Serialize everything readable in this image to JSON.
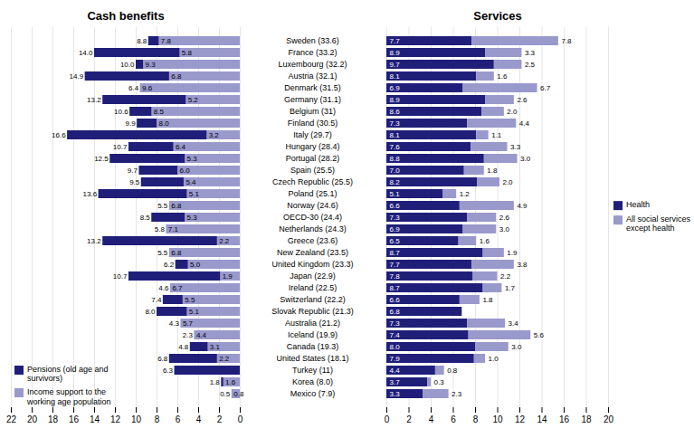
{
  "chart_data": [
    {
      "type": "bar",
      "title": "Cash benefits",
      "orientation": "horizontal",
      "stacked": false,
      "data_labels": true,
      "grid": true,
      "legend": "lower left",
      "categories": [
        "Sweden (33.6)",
        "France (33.2)",
        "Luxembourg (32.2)",
        "Austria (32.1)",
        "Denmark (31.5)",
        "Germany (31.1)",
        "Belgium (31)",
        "Finland (30.5)",
        "Italy (29.7)",
        "Hungary (28.4)",
        "Portugal (28.2)",
        "Spain (25.5)",
        "Czech Republic (25.5)",
        "Poland (25.1)",
        "Norway (24.6)",
        "OECD-30 (24.4)",
        "Netherlands (24.3)",
        "Greece (23.6)",
        "New Zealand (23.5)",
        "United Kingdom (23.3)",
        "Japan (22.9)",
        "Ireland (22.5)",
        "Switzerland (22.2)",
        "Slovak Republic (21.3)",
        "Australia (21.2)",
        "Iceland (19.9)",
        "Canada (19.3)",
        "United States (18.1)",
        "Turkey (11)",
        "Korea (8.0)",
        "Mexico (7.9)"
      ],
      "series": [
        {
          "name": "Pensions (old age and\nsurvivors)",
          "color": "#1f1f7a",
          "values": [
            8.8,
            14.0,
            10.0,
            14.9,
            6.4,
            13.2,
            10.6,
            9.9,
            16.6,
            10.7,
            12.5,
            9.7,
            9.5,
            13.6,
            5.5,
            8.5,
            5.8,
            13.2,
            5.5,
            6.2,
            10.7,
            4.6,
            7.4,
            8.0,
            4.3,
            2.3,
            4.8,
            6.8,
            6.3,
            1.8,
            0.5
          ],
          "value_labels": [
            "8.8",
            "14.0",
            "10.0",
            "14.9",
            "6.4",
            "13.2",
            "10.6",
            "9.9",
            "16.6",
            "10.7",
            "12.5",
            "9.7",
            "9.5",
            "13.6",
            "5.5",
            "8.5",
            "5.8",
            "13.2",
            "5.5",
            "6.2",
            "10.7",
            "4.6",
            "7.4",
            "8.0",
            "4.3",
            "2.3",
            "4.8",
            "6.8",
            "6.3",
            "1.8",
            "0.5"
          ]
        },
        {
          "name": "Income support to the\nworking age population",
          "color": "#9999cc",
          "values": [
            7.8,
            5.8,
            9.3,
            6.8,
            9.6,
            5.2,
            8.5,
            8.0,
            3.2,
            6.4,
            5.3,
            6.0,
            5.4,
            5.1,
            6.8,
            5.3,
            7.1,
            2.2,
            6.8,
            5.0,
            1.9,
            6.7,
            5.5,
            5.1,
            5.7,
            4.4,
            3.1,
            2.2,
            0.0,
            1.6,
            0.8
          ],
          "value_labels": [
            "7.8",
            "5.8",
            "9.3",
            "6.8",
            "9.6",
            "5.2",
            "8.5",
            "8.0",
            "3.2",
            "6.4",
            "5.3",
            "6.0",
            "5.4",
            "5.1",
            "6.8",
            "5.3",
            "7.1",
            "2.2",
            "6.8",
            "5.0",
            "1.9",
            "6.7",
            "5.5",
            "5.1",
            "5.7",
            "4.4",
            "3.1",
            "2.2",
            null,
            "1.6",
            "0.8"
          ]
        }
      ],
      "xlim": [
        22,
        0
      ],
      "xticks": [
        0,
        2,
        4,
        6,
        8,
        10,
        12,
        14,
        16,
        18,
        20,
        22
      ]
    },
    {
      "type": "bar",
      "title": "Services",
      "orientation": "horizontal",
      "stacked": true,
      "data_labels": true,
      "grid": true,
      "legend": "center right",
      "categories": [
        "Sweden (33.6)",
        "France (33.2)",
        "Luxembourg (32.2)",
        "Austria (32.1)",
        "Denmark (31.5)",
        "Germany (31.1)",
        "Belgium (31)",
        "Finland (30.5)",
        "Italy (29.7)",
        "Hungary (28.4)",
        "Portugal (28.2)",
        "Spain (25.5)",
        "Czech Republic (25.5)",
        "Poland (25.1)",
        "Norway (24.6)",
        "OECD-30 (24.4)",
        "Netherlands (24.3)",
        "Greece (23.6)",
        "New Zealand (23.5)",
        "United Kingdom (23.3)",
        "Japan (22.9)",
        "Ireland (22.5)",
        "Switzerland (22.2)",
        "Slovak Republic (21.3)",
        "Australia (21.2)",
        "Iceland (19.9)",
        "Canada (19.3)",
        "United States (18.1)",
        "Turkey (11)",
        "Korea (8.0)",
        "Mexico (7.9)"
      ],
      "series": [
        {
          "name": "Health",
          "color": "#1f1f7a",
          "values": [
            7.7,
            8.9,
            9.7,
            8.1,
            6.9,
            8.9,
            8.6,
            7.3,
            8.1,
            7.6,
            8.8,
            7.0,
            8.2,
            5.1,
            6.6,
            7.3,
            6.9,
            6.5,
            8.7,
            7.7,
            7.8,
            8.7,
            6.6,
            6.8,
            7.3,
            7.4,
            8.0,
            7.9,
            4.4,
            3.7,
            3.3
          ],
          "value_labels": [
            "7.7",
            "8.9",
            "9.7",
            "8.1",
            "6.9",
            "8.9",
            "8.6",
            "7.3",
            "8.1",
            "7.6",
            "8.8",
            "7.0",
            "8.2",
            "5.1",
            "6.6",
            "7.3",
            "6.9",
            "6.5",
            "8.7",
            "7.7",
            "7.8",
            "8.7",
            "6.6",
            "6.8",
            "7.3",
            "7.4",
            "8.0",
            "7.9",
            "4.4",
            "3.7",
            "3.3"
          ]
        },
        {
          "name": "All social services\nexcept health",
          "color": "#9999cc",
          "values": [
            7.8,
            3.3,
            2.5,
            1.6,
            6.7,
            2.6,
            2.0,
            4.4,
            1.1,
            3.3,
            3.0,
            1.8,
            2.0,
            1.2,
            4.9,
            2.6,
            3.0,
            1.6,
            1.9,
            3.8,
            2.2,
            1.7,
            1.8,
            0.0,
            3.4,
            5.6,
            3.0,
            1.0,
            0.8,
            0.3,
            2.3
          ],
          "value_labels": [
            "7.8",
            "3.3",
            "2.5",
            "1.6",
            "6.7",
            "2.6",
            "2.0",
            "4.4",
            "1.1",
            "3.3",
            "3.0",
            "1.8",
            "2.0",
            "1.2",
            "4.9",
            "2.6",
            "3.0",
            "1.6",
            "1.9",
            "3.8",
            "2.2",
            "1.7",
            "1.8",
            null,
            "3.4",
            "5.6",
            "3.0",
            "1.0",
            "0.8",
            "0.3",
            "2.3"
          ]
        }
      ],
      "xlim": [
        0,
        20
      ],
      "xticks": [
        0,
        2,
        4,
        6,
        8,
        10,
        12,
        14,
        16,
        18,
        20
      ]
    }
  ]
}
